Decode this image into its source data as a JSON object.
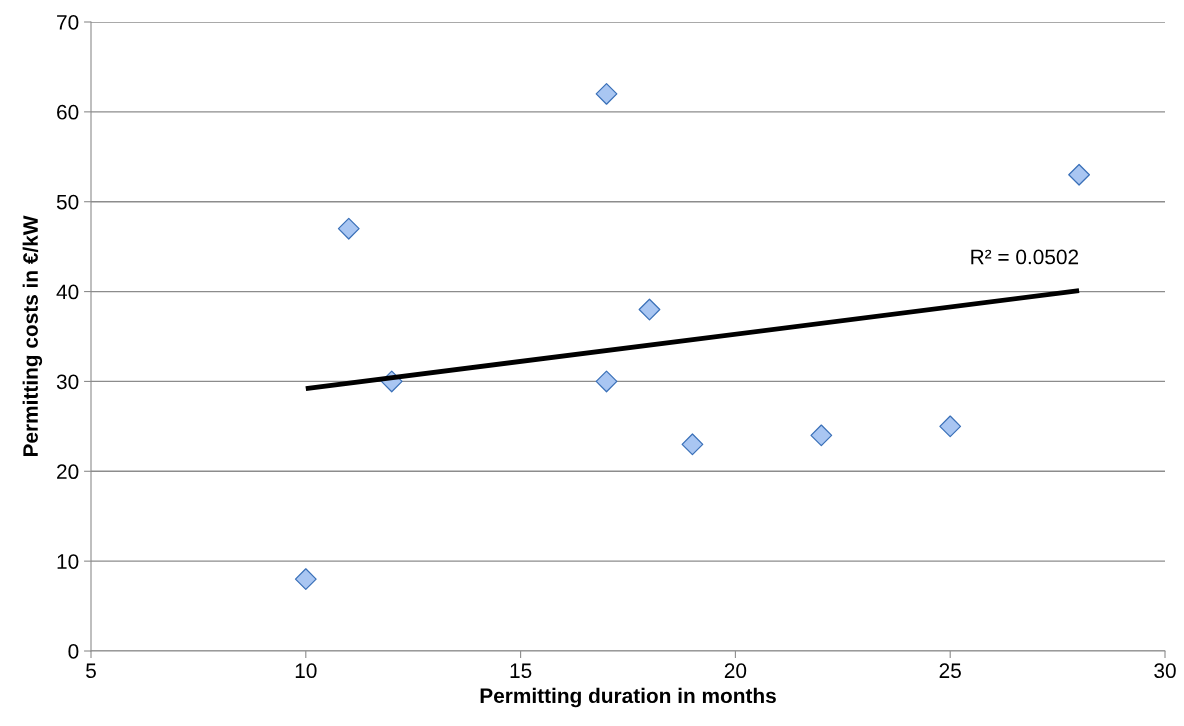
{
  "chart_data": {
    "type": "scatter",
    "xlabel": "Permitting duration in months",
    "ylabel": "Permitting costs in €/kW",
    "xlim": [
      5,
      30
    ],
    "xticks": [
      5,
      10,
      15,
      20,
      25,
      30
    ],
    "ylim": [
      0,
      70
    ],
    "yticks": [
      0,
      10,
      20,
      30,
      40,
      50,
      60,
      70
    ],
    "grid": "y",
    "marker": "diamond",
    "series": [
      {
        "color": "#a9c6f2",
        "x": [
          10,
          11,
          12,
          17,
          17,
          18,
          19,
          22,
          25,
          28
        ],
        "values": [
          8,
          47,
          30,
          62,
          30,
          38,
          23,
          24,
          25,
          53
        ]
      },
      {
        "type": "line",
        "color": "#000000",
        "marker": "none",
        "line_style": "solid",
        "x": [
          10,
          28
        ],
        "values": [
          29.2,
          40.1
        ]
      }
    ],
    "annotations": [
      {
        "text": "R² = 0.0502",
        "x": 28,
        "y": 40.1
      }
    ]
  }
}
